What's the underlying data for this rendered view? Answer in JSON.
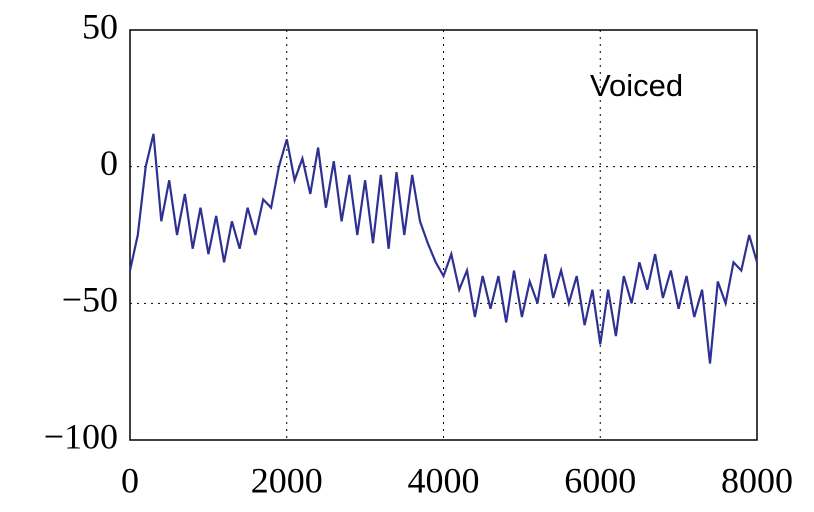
{
  "chart_data": {
    "type": "line",
    "annotation": "Voiced",
    "color": "#2e3192",
    "grid": true,
    "x": [
      0,
      100,
      200,
      300,
      400,
      500,
      600,
      700,
      800,
      900,
      1000,
      1100,
      1200,
      1300,
      1400,
      1500,
      1600,
      1700,
      1800,
      1900,
      2000,
      2100,
      2200,
      2300,
      2400,
      2500,
      2600,
      2700,
      2800,
      2900,
      3000,
      3100,
      3200,
      3300,
      3400,
      3500,
      3600,
      3700,
      3800,
      3900,
      4000,
      4100,
      4200,
      4300,
      4400,
      4500,
      4600,
      4700,
      4800,
      4900,
      5000,
      5100,
      5200,
      5300,
      5400,
      5500,
      5600,
      5700,
      5800,
      5900,
      6000,
      6100,
      6200,
      6300,
      6400,
      6500,
      6600,
      6700,
      6800,
      6900,
      7000,
      7100,
      7200,
      7300,
      7400,
      7500,
      7600,
      7700,
      7800,
      7900,
      8000
    ],
    "values": [
      -38,
      -25,
      0,
      12,
      -20,
      -5,
      -25,
      -10,
      -30,
      -15,
      -32,
      -18,
      -35,
      -20,
      -30,
      -15,
      -25,
      -12,
      -15,
      0,
      10,
      -5,
      3,
      -10,
      7,
      -15,
      2,
      -20,
      -3,
      -25,
      -5,
      -28,
      -3,
      -30,
      -2,
      -25,
      -3,
      -20,
      -28,
      -35,
      -40,
      -32,
      -45,
      -38,
      -55,
      -40,
      -52,
      -40,
      -57,
      -38,
      -55,
      -42,
      -50,
      -32,
      -48,
      -38,
      -50,
      -40,
      -58,
      -45,
      -65,
      -45,
      -62,
      -40,
      -50,
      -35,
      -45,
      -32,
      -48,
      -38,
      -52,
      -40,
      -55,
      -45,
      -72,
      -42,
      -50,
      -35,
      -38,
      -25,
      -35
    ],
    "xlim": [
      0,
      8000
    ],
    "xticks": [
      0,
      2000,
      4000,
      6000,
      8000
    ],
    "ylim": [
      -100,
      50
    ],
    "yticks": [
      {
        "value": -100,
        "label": "−100"
      },
      {
        "value": -50,
        "label": "−50"
      },
      0,
      50
    ]
  }
}
